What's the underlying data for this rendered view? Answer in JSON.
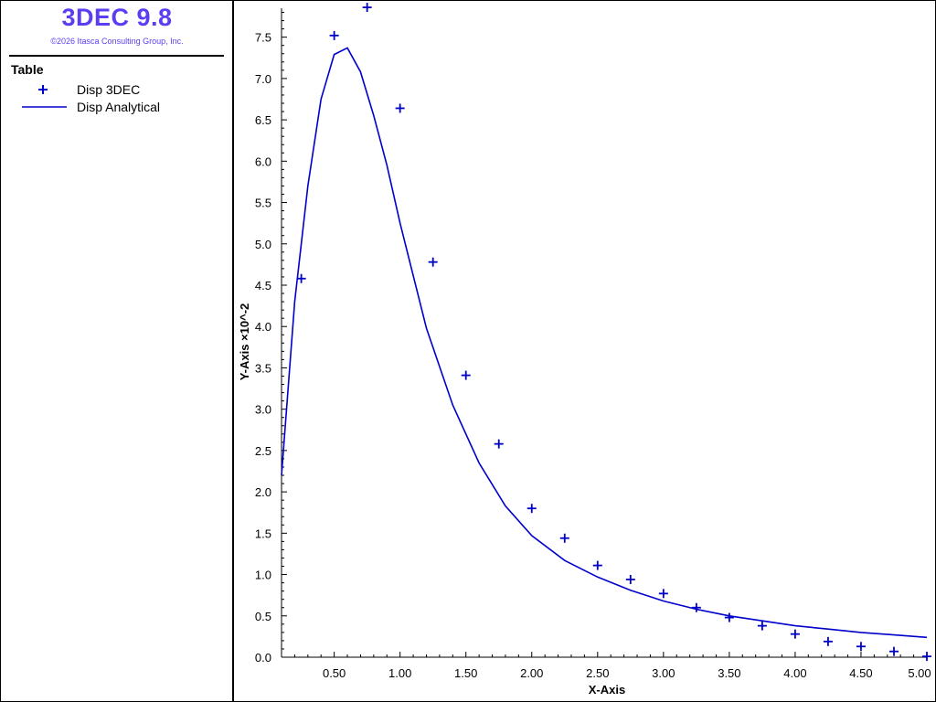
{
  "app": {
    "title": "3DEC 9.8",
    "copyright": "©2026 Itasca Consulting Group, Inc."
  },
  "legend": {
    "title": "Table",
    "items": [
      {
        "label": "Disp 3DEC",
        "symbol": "plus-marker"
      },
      {
        "label": "Disp Analytical",
        "symbol": "line"
      }
    ]
  },
  "colors": {
    "brand": "#5b3df2",
    "series": "#0000cc"
  },
  "chart_data": {
    "type": "scatter",
    "title": "",
    "xlabel": "X-Axis",
    "ylabel": "Y-Axis ×10^-2",
    "xlim": [
      0.1,
      5.0
    ],
    "ylim": [
      0.0,
      7.85
    ],
    "x_ticks": [
      0.5,
      1.0,
      1.5,
      2.0,
      2.5,
      3.0,
      3.5,
      4.0,
      4.5,
      5.0
    ],
    "x_tick_labels": [
      "0.50",
      "1.00",
      "1.50",
      "2.00",
      "2.50",
      "3.00",
      "3.50",
      "4.00",
      "4.50",
      "5.00"
    ],
    "y_ticks": [
      0.0,
      0.5,
      1.0,
      1.5,
      2.0,
      2.5,
      3.0,
      3.5,
      4.0,
      4.5,
      5.0,
      5.5,
      6.0,
      6.5,
      7.0,
      7.5
    ],
    "y_tick_labels": [
      "0.0",
      "0.5",
      "1.0",
      "1.5",
      "2.0",
      "2.5",
      "3.0",
      "3.5",
      "4.0",
      "4.5",
      "5.0",
      "5.5",
      "6.0",
      "6.5",
      "7.0",
      "7.5"
    ],
    "grid": false,
    "legend_position": "left-panel",
    "series": [
      {
        "name": "Disp 3DEC",
        "kind": "scatter",
        "x": [
          0.25,
          0.5,
          0.75,
          1.0,
          1.25,
          1.5,
          1.75,
          2.0,
          2.25,
          2.5,
          2.75,
          3.0,
          3.25,
          3.5,
          3.75,
          4.0,
          4.25,
          4.5,
          4.75,
          5.0
        ],
        "y": [
          4.58,
          7.52,
          7.86,
          6.64,
          4.78,
          3.41,
          2.58,
          1.8,
          1.44,
          1.11,
          0.94,
          0.77,
          0.6,
          0.48,
          0.38,
          0.28,
          0.19,
          0.13,
          0.07,
          0.01
        ]
      },
      {
        "name": "Disp Analytical",
        "kind": "line",
        "x": [
          0.1,
          0.2,
          0.3,
          0.4,
          0.5,
          0.6,
          0.7,
          0.8,
          0.9,
          1.0,
          1.2,
          1.4,
          1.6,
          1.8,
          2.0,
          2.25,
          2.5,
          2.75,
          3.0,
          3.25,
          3.5,
          3.75,
          4.0,
          4.25,
          4.5,
          4.75,
          5.0
        ],
        "y": [
          2.2,
          4.3,
          5.7,
          6.75,
          7.29,
          7.37,
          7.08,
          6.55,
          5.95,
          5.25,
          3.98,
          3.05,
          2.35,
          1.83,
          1.47,
          1.17,
          0.97,
          0.81,
          0.68,
          0.58,
          0.5,
          0.44,
          0.38,
          0.34,
          0.3,
          0.27,
          0.24
        ]
      }
    ]
  }
}
